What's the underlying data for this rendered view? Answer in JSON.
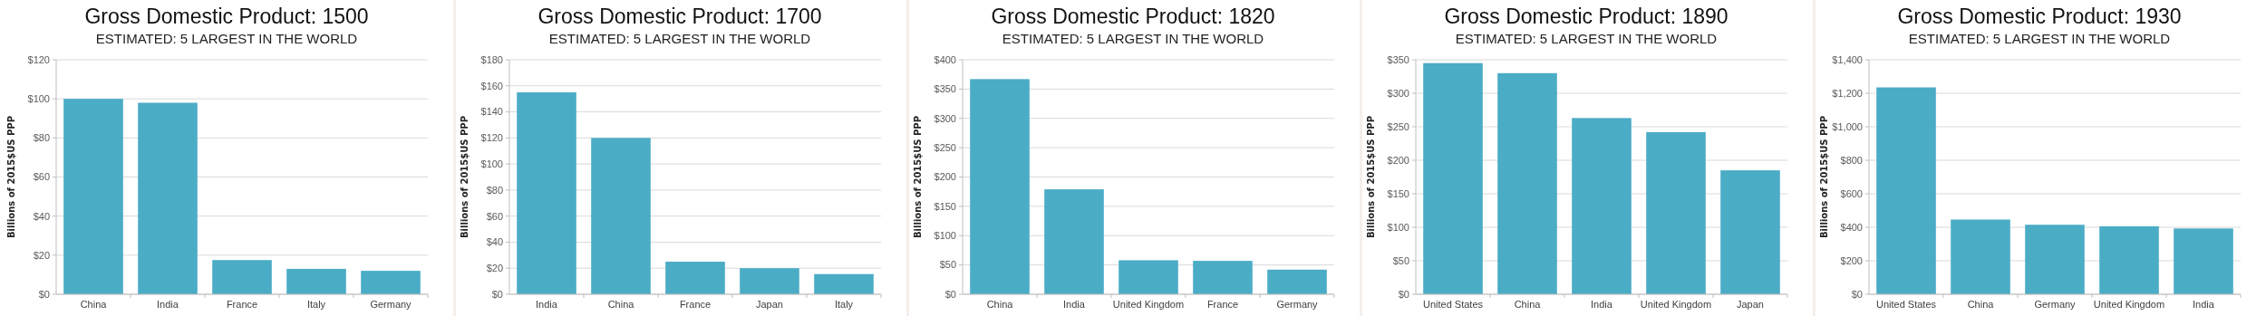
{
  "chart_data": [
    {
      "type": "bar",
      "title": "Gross Domestic Product: 1500",
      "subtitle": "ESTIMATED: 5 LARGEST IN THE WORLD",
      "ylabel": "Billions of 2015$US  PPP",
      "categories": [
        "China",
        "India",
        "France",
        "Italy",
        "Germany"
      ],
      "values": [
        100,
        98,
        17.5,
        13,
        12
      ],
      "color": "#4bacc6",
      "ylim": [
        0,
        120
      ],
      "yticks": [
        {
          "value": 0,
          "label": "$0"
        },
        {
          "value": 20,
          "label": "$20"
        },
        {
          "value": 40,
          "label": "$40"
        },
        {
          "value": 60,
          "label": "$60"
        },
        {
          "value": 80,
          "label": "$80"
        },
        {
          "value": 100,
          "label": "$100"
        },
        {
          "value": 120,
          "label": "$120"
        }
      ],
      "grid": "y"
    },
    {
      "type": "bar",
      "title": "Gross Domestic Product: 1700",
      "subtitle": "ESTIMATED: 5 LARGEST IN THE WORLD",
      "ylabel": "Billions of 2015$US  PPP",
      "categories": [
        "India",
        "China",
        "France",
        "Japan",
        "Italy"
      ],
      "values": [
        155,
        120,
        25,
        20,
        15.5
      ],
      "color": "#4bacc6",
      "ylim": [
        0,
        180
      ],
      "yticks": [
        {
          "value": 0,
          "label": "$0"
        },
        {
          "value": 20,
          "label": "$20"
        },
        {
          "value": 40,
          "label": "$40"
        },
        {
          "value": 60,
          "label": "$60"
        },
        {
          "value": 80,
          "label": "$80"
        },
        {
          "value": 100,
          "label": "$100"
        },
        {
          "value": 120,
          "label": "$120"
        },
        {
          "value": 140,
          "label": "$140"
        },
        {
          "value": 160,
          "label": "$160"
        },
        {
          "value": 180,
          "label": "$180"
        }
      ],
      "grid": "y"
    },
    {
      "type": "bar",
      "title": "Gross Domestic Product: 1820",
      "subtitle": "ESTIMATED: 5 LARGEST IN THE WORLD",
      "ylabel": "Billions of 2015$US  PPP",
      "categories": [
        "China",
        "India",
        "United Kingdom",
        "France",
        "Germany"
      ],
      "values": [
        367,
        179,
        58,
        57,
        42
      ],
      "color": "#4bacc6",
      "ylim": [
        0,
        400
      ],
      "yticks": [
        {
          "value": 0,
          "label": "$0"
        },
        {
          "value": 50,
          "label": "$50"
        },
        {
          "value": 100,
          "label": "$100"
        },
        {
          "value": 150,
          "label": "$150"
        },
        {
          "value": 200,
          "label": "$200"
        },
        {
          "value": 250,
          "label": "$250"
        },
        {
          "value": 300,
          "label": "$300"
        },
        {
          "value": 350,
          "label": "$350"
        },
        {
          "value": 400,
          "label": "$400"
        }
      ],
      "grid": "y"
    },
    {
      "type": "bar",
      "title": "Gross Domestic Product: 1890",
      "subtitle": "ESTIMATED: 5 LARGEST IN THE WORLD",
      "ylabel": "Billions of 2015$US  PPP",
      "categories": [
        "United States",
        "China",
        "India",
        "United Kingdom",
        "Japan"
      ],
      "values": [
        345,
        330,
        263,
        242,
        185
      ],
      "color": "#4bacc6",
      "ylim": [
        0,
        350
      ],
      "yticks": [
        {
          "value": 0,
          "label": "$0"
        },
        {
          "value": 50,
          "label": "$50"
        },
        {
          "value": 100,
          "label": "$100"
        },
        {
          "value": 150,
          "label": "$150"
        },
        {
          "value": 200,
          "label": "$200"
        },
        {
          "value": 250,
          "label": "$250"
        },
        {
          "value": 300,
          "label": "$300"
        },
        {
          "value": 350,
          "label": "$350"
        }
      ],
      "grid": "y"
    },
    {
      "type": "bar",
      "title": "Gross Domestic Product: 1930",
      "subtitle": "ESTIMATED: 5 LARGEST IN THE WORLD",
      "ylabel": "Billions of 2015$US  PPP",
      "categories": [
        "United States",
        "China",
        "Germany",
        "United Kingdom",
        "India"
      ],
      "values": [
        1235,
        446,
        415,
        406,
        393
      ],
      "color": "#4bacc6",
      "ylim": [
        0,
        1400
      ],
      "yticks": [
        {
          "value": 0,
          "label": "$0"
        },
        {
          "value": 200,
          "label": "$200"
        },
        {
          "value": 400,
          "label": "$400"
        },
        {
          "value": 600,
          "label": "$600"
        },
        {
          "value": 800,
          "label": "$800"
        },
        {
          "value": 1000,
          "label": "$1,000"
        },
        {
          "value": 1200,
          "label": "$1,200"
        },
        {
          "value": 1400,
          "label": "$1,400"
        }
      ],
      "grid": "y"
    }
  ]
}
